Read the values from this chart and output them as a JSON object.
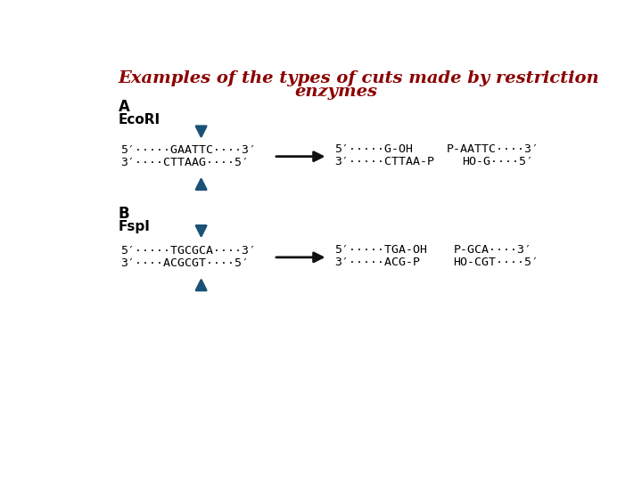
{
  "title_line1": "Examples of the types of cuts made by restriction",
  "title_line2": "enzymes",
  "title_color": "#8B0000",
  "title_fontsize": 14,
  "bg_color": "#ffffff",
  "arrow_color": "#1a5276",
  "black_arrow_color": "#111111",
  "label_A": "A",
  "label_B": "B",
  "enzyme_A": "EcoRI",
  "enzyme_B": "FspI",
  "font_seq": 9.5,
  "font_label": 12,
  "font_enzyme": 11
}
